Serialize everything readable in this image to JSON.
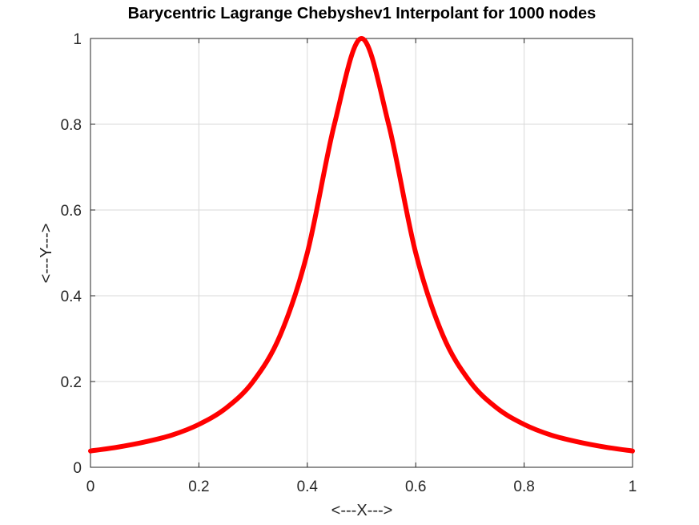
{
  "chart_data": {
    "type": "line",
    "title": "Barycentric Lagrange Chebyshev1 Interpolant for 1000 nodes",
    "xlabel": "<---X--->",
    "ylabel": "<---Y--->",
    "xlim": [
      0,
      1
    ],
    "ylim": [
      0,
      1
    ],
    "xticks": [
      0,
      0.2,
      0.4,
      0.6,
      0.8,
      1
    ],
    "yticks": [
      0,
      0.2,
      0.4,
      0.6,
      0.8,
      1
    ],
    "xtick_labels": [
      "0",
      "0.2",
      "0.4",
      "0.6",
      "0.8",
      "1"
    ],
    "ytick_labels": [
      "0",
      "0.2",
      "0.4",
      "0.6",
      "0.8",
      "1"
    ],
    "grid": true,
    "series": [
      {
        "color": "#ff0000",
        "x": [
          0,
          0.05,
          0.1,
          0.15,
          0.2,
          0.25,
          0.3,
          0.35,
          0.4,
          0.45,
          0.5,
          0.55,
          0.6,
          0.65,
          0.7,
          0.75,
          0.8,
          0.85,
          0.9,
          0.95,
          1
        ],
        "y": [
          0.038,
          0.047,
          0.059,
          0.075,
          0.1,
          0.138,
          0.2,
          0.308,
          0.5,
          0.8,
          1,
          0.8,
          0.5,
          0.308,
          0.2,
          0.138,
          0.1,
          0.075,
          0.059,
          0.047,
          0.038
        ]
      }
    ]
  }
}
